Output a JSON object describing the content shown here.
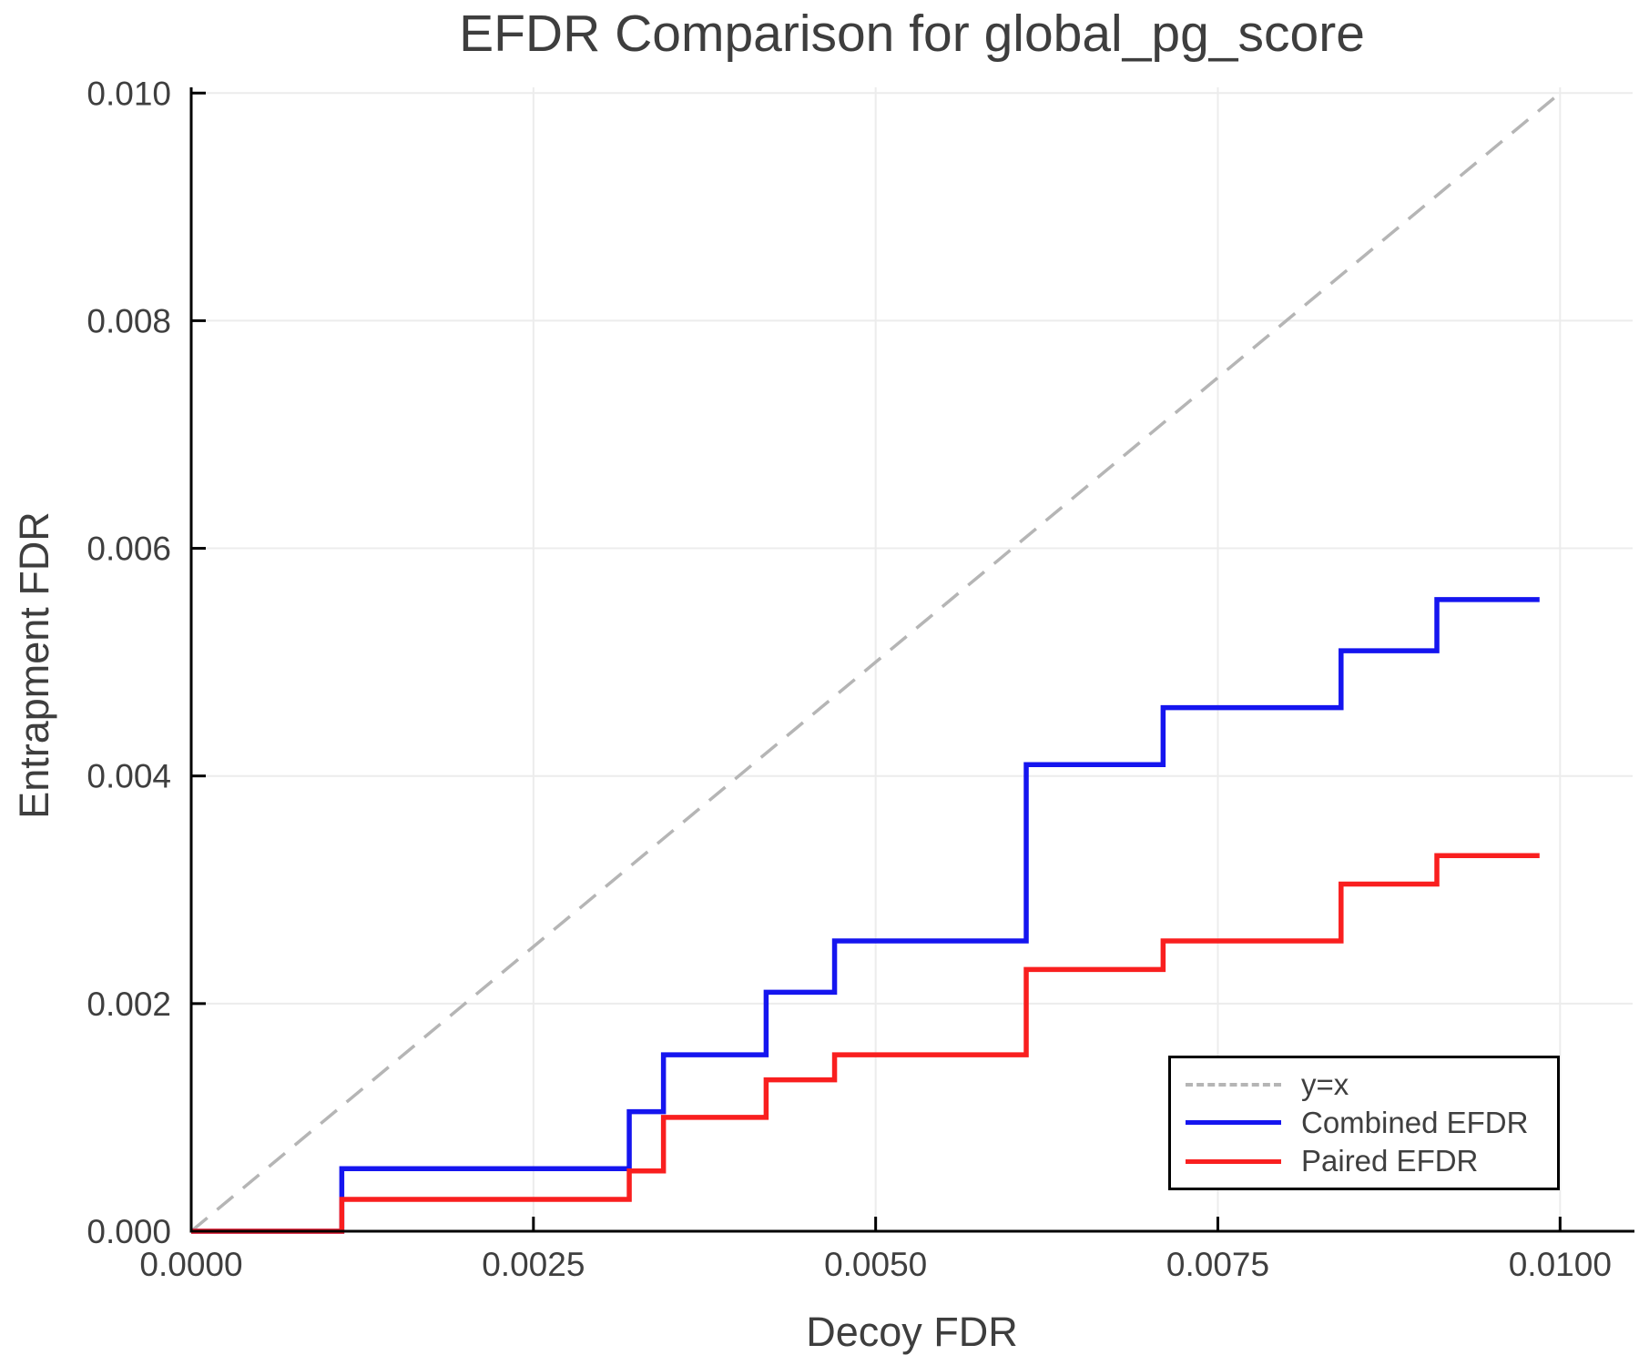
{
  "chart_data": {
    "type": "line",
    "title": "EFDR Comparison for global_pg_score",
    "xlabel": "Decoy FDR",
    "ylabel": "Entrapment FDR",
    "xlim": [
      0,
      0.01053
    ],
    "ylim": [
      0,
      0.01005
    ],
    "grid": true,
    "legend_position": "lower right",
    "x_ticks": {
      "values": [
        0.0,
        0.0025,
        0.005,
        0.0075,
        0.01
      ],
      "labels": [
        "0.0000",
        "0.0025",
        "0.0050",
        "0.0075",
        "0.0100"
      ]
    },
    "y_ticks": {
      "values": [
        0.0,
        0.002,
        0.004,
        0.006,
        0.008,
        0.01
      ],
      "labels": [
        "0.000",
        "0.002",
        "0.004",
        "0.006",
        "0.008",
        "0.010"
      ]
    },
    "series": [
      {
        "name": "y=x",
        "drawstyle": "line",
        "style": "dashed",
        "color": "#b5b5b5",
        "width": 3.5,
        "x": [
          0.0,
          0.01
        ],
        "y": [
          0.0,
          0.01
        ]
      },
      {
        "name": "Combined EFDR",
        "drawstyle": "steps-post",
        "style": "solid",
        "color": "#1515ef",
        "width": 5.5,
        "x": [
          0.0,
          0.0011,
          0.0032,
          0.00345,
          0.0042,
          0.0047,
          0.0061,
          0.0071,
          0.0084,
          0.0091,
          0.00985
        ],
        "y": [
          0.0,
          0.00055,
          0.00105,
          0.00155,
          0.0021,
          0.00255,
          0.0041,
          0.0046,
          0.0051,
          0.00555,
          0.00555
        ]
      },
      {
        "name": "Paired EFDR",
        "drawstyle": "steps-post",
        "style": "solid",
        "color": "#f91f1f",
        "width": 5.5,
        "x": [
          0.0,
          0.0011,
          0.0032,
          0.00345,
          0.0042,
          0.0047,
          0.0061,
          0.0071,
          0.0084,
          0.0091,
          0.00985
        ],
        "y": [
          0.0,
          0.00028,
          0.00053,
          0.001,
          0.00133,
          0.00155,
          0.0023,
          0.00255,
          0.00305,
          0.0033,
          0.0033
        ]
      }
    ],
    "style": {
      "grid_color": "#ececec",
      "spine_color": "#000000",
      "tick_color": "#000000",
      "text_color": "#3f3f3f",
      "background": "#ffffff"
    }
  }
}
